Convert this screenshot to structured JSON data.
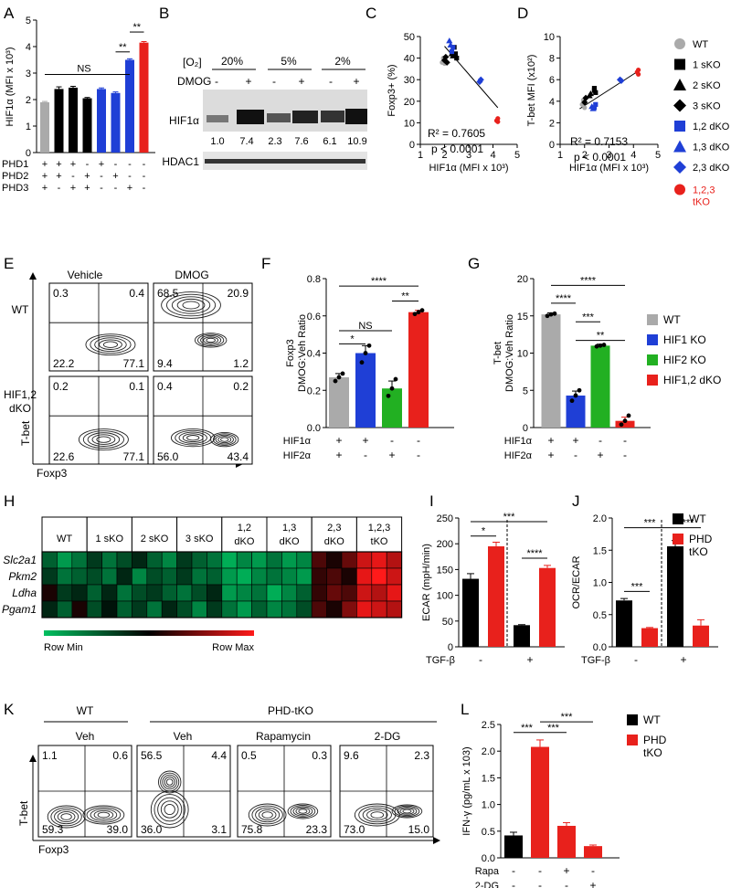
{
  "panel_letters": [
    "A",
    "B",
    "C",
    "D",
    "E",
    "F",
    "G",
    "H",
    "I",
    "J",
    "K",
    "L"
  ],
  "legend_phd": {
    "items": [
      {
        "label": "WT",
        "color": "#aaaaaa",
        "shape": "circle"
      },
      {
        "label": "1 sKO",
        "color": "#000000",
        "shape": "square"
      },
      {
        "label": "2 sKO",
        "color": "#000000",
        "shape": "triangle"
      },
      {
        "label": "3 sKO",
        "color": "#000000",
        "shape": "diamond"
      },
      {
        "label": "1,2 dKO",
        "color": "#1f3fd6",
        "shape": "square"
      },
      {
        "label": "1,3 dKO",
        "color": "#1f3fd6",
        "shape": "triangle"
      },
      {
        "label": "2,3 dKO",
        "color": "#1f3fd6",
        "shape": "diamond"
      },
      {
        "label": "1,2,3",
        "label2": "tKO",
        "color": "#e8211c",
        "shape": "circle"
      }
    ]
  },
  "legend_hif": {
    "items": [
      {
        "label": "WT",
        "color": "#aaaaaa"
      },
      {
        "label": "HIF1 KO",
        "color": "#1f3fd6"
      },
      {
        "label": "HIF2 KO",
        "color": "#22b022"
      },
      {
        "label": "HIF1,2 dKO",
        "color": "#e8211c"
      }
    ]
  },
  "legend_ij": {
    "items": [
      {
        "label": "WT",
        "color": "#000000"
      },
      {
        "label": "PHD",
        "label2": "tKO",
        "color": "#e8211c"
      }
    ]
  },
  "panelB": {
    "o2_label": "[O₂]",
    "dmog_label": "DMOG",
    "conditions": [
      "20%",
      "5%",
      "2%"
    ],
    "lane_signs": [
      "-",
      "+",
      "-",
      "+",
      "-",
      "+"
    ],
    "quant": [
      "1.0",
      "7.4",
      "2.3",
      "7.6",
      "6.1",
      "10.9"
    ],
    "band1": "HIF1α",
    "band2": "HDAC1"
  },
  "panelE": {
    "col_titles": [
      "Vehicle",
      "DMOG"
    ],
    "row_labels": [
      "WT",
      "HIF1,2",
      "dKO"
    ],
    "ylabel": "T-bet",
    "xlabel": "Foxp3",
    "quadrants": [
      [
        "0.3",
        "0.4",
        "22.2",
        "77.1"
      ],
      [
        "68.5",
        "20.9",
        "9.4",
        "1.2"
      ],
      [
        "0.2",
        "0.1",
        "22.6",
        "77.1"
      ],
      [
        "0.4",
        "0.2",
        "56.0",
        "43.4"
      ]
    ]
  },
  "panelH": {
    "groups": [
      "WT",
      "1 sKO",
      "2 sKO",
      "3 sKO",
      "1,2",
      "dKO",
      "1,3",
      "dKO",
      "2,3",
      "dKO",
      "1,2,3",
      "tKO"
    ],
    "genes": [
      "Slc2a1",
      "Pkm2",
      "Ldha",
      "Pgam1"
    ],
    "row_min": "Row Min",
    "row_max": "Row Max"
  },
  "panelK": {
    "group_wt": "WT",
    "group_tko": "PHD-tKO",
    "col_titles": [
      "Veh",
      "Veh",
      "Rapamycin",
      "2-DG"
    ],
    "ylabel": "T-bet",
    "xlabel": "Foxp3",
    "quadrants": [
      [
        "1.1",
        "0.6",
        "59.3",
        "39.0"
      ],
      [
        "56.5",
        "4.4",
        "36.0",
        "3.1"
      ],
      [
        "0.5",
        "0.3",
        "75.8",
        "23.3"
      ],
      [
        "9.6",
        "2.3",
        "73.0",
        "15.0"
      ]
    ]
  },
  "chart_data": [
    {
      "panel": "A",
      "type": "bar",
      "ylabel": "HIF1α (MFI x 10³)",
      "ylim": [
        0,
        5
      ],
      "yticks": [
        0,
        1,
        2,
        3,
        4,
        5
      ],
      "values": [
        1.9,
        2.4,
        2.45,
        2.05,
        2.4,
        2.25,
        3.5,
        4.15
      ],
      "errors": [
        0.03,
        0.08,
        0.05,
        0.03,
        0.04,
        0.04,
        0.04,
        0.04
      ],
      "colors": [
        "#aaaaaa",
        "#000000",
        "#000000",
        "#000000",
        "#1f3fd6",
        "#1f3fd6",
        "#1f3fd6",
        "#e8211c"
      ],
      "row_labels": [
        "PHD1",
        "PHD2",
        "PHD3"
      ],
      "genotype_signs": [
        [
          "+",
          "+",
          "+",
          "-",
          "+",
          "-",
          "-",
          "-"
        ],
        [
          "+",
          "+",
          "-",
          "+",
          "-",
          "+",
          "-",
          "-"
        ],
        [
          "+",
          "-",
          "+",
          "+",
          "-",
          "-",
          "+",
          "-"
        ]
      ],
      "annotations": [
        "NS",
        "**",
        "**"
      ]
    },
    {
      "panel": "C",
      "type": "scatter",
      "xlabel": "HIF1α (MFI x 10³)",
      "ylabel": "Foxp3+ (%)",
      "xlim": [
        1,
        5
      ],
      "ylim": [
        0,
        50
      ],
      "xticks": [
        1,
        2,
        3,
        4,
        5
      ],
      "yticks": [
        0,
        10,
        20,
        30,
        40,
        50
      ],
      "stats": [
        "R² = 0.7605",
        "p < 0.0001"
      ],
      "fit": [
        [
          2.0,
          45.5
        ],
        [
          4.2,
          17.0
        ]
      ],
      "points": [
        {
          "x": 1.9,
          "y": 38,
          "g": "WT"
        },
        {
          "x": 1.95,
          "y": 40,
          "g": "WT"
        },
        {
          "x": 2.0,
          "y": 37.5,
          "g": "WT"
        },
        {
          "x": 2.4,
          "y": 45,
          "g": "1 sKO"
        },
        {
          "x": 2.45,
          "y": 42,
          "g": "1 sKO"
        },
        {
          "x": 2.5,
          "y": 40,
          "g": "1 sKO"
        },
        {
          "x": 2.3,
          "y": 42,
          "g": "2 sKO"
        },
        {
          "x": 2.35,
          "y": 41,
          "g": "2 sKO"
        },
        {
          "x": 2.0,
          "y": 39,
          "g": "3 sKO"
        },
        {
          "x": 2.05,
          "y": 40.5,
          "g": "3 sKO"
        },
        {
          "x": 2.1,
          "y": 38,
          "g": "3 sKO"
        },
        {
          "x": 2.3,
          "y": 43,
          "g": "1,2 dKO"
        },
        {
          "x": 2.35,
          "y": 45,
          "g": "1,2 dKO"
        },
        {
          "x": 2.2,
          "y": 48,
          "g": "1,3 dKO"
        },
        {
          "x": 2.25,
          "y": 46,
          "g": "1,3 dKO"
        },
        {
          "x": 3.45,
          "y": 29,
          "g": "2,3 dKO"
        },
        {
          "x": 3.5,
          "y": 30,
          "g": "2,3 dKO"
        },
        {
          "x": 4.15,
          "y": 11,
          "g": "1,2,3 tKO"
        },
        {
          "x": 4.2,
          "y": 12,
          "g": "1,2,3 tKO"
        },
        {
          "x": 4.2,
          "y": 10.5,
          "g": "1,2,3 tKO"
        }
      ]
    },
    {
      "panel": "D",
      "type": "scatter",
      "xlabel": "HIF1α (MFI x 10³)",
      "ylabel": "T-bet MFI (x10²)",
      "xlim": [
        1,
        5
      ],
      "ylim": [
        0,
        10
      ],
      "xticks": [
        1,
        2,
        3,
        4,
        5
      ],
      "yticks": [
        0,
        2,
        4,
        6,
        8,
        10
      ],
      "stats": [
        "R² = 0.7153",
        "p < 0.0001"
      ],
      "fit": [
        [
          1.8,
          3.3
        ],
        [
          4.2,
          6.8
        ]
      ],
      "points": [
        {
          "x": 1.9,
          "y": 3.7,
          "g": "WT"
        },
        {
          "x": 1.95,
          "y": 4.1,
          "g": "WT"
        },
        {
          "x": 2.0,
          "y": 3.4,
          "g": "WT"
        },
        {
          "x": 2.4,
          "y": 5.2,
          "g": "1 sKO"
        },
        {
          "x": 2.45,
          "y": 4.8,
          "g": "1 sKO"
        },
        {
          "x": 2.4,
          "y": 5.0,
          "g": "1 sKO"
        },
        {
          "x": 2.2,
          "y": 4.5,
          "g": "2 sKO"
        },
        {
          "x": 2.25,
          "y": 4.7,
          "g": "2 sKO"
        },
        {
          "x": 2.0,
          "y": 3.9,
          "g": "3 sKO"
        },
        {
          "x": 2.05,
          "y": 4.3,
          "g": "3 sKO"
        },
        {
          "x": 2.4,
          "y": 3.4,
          "g": "1,2 dKO"
        },
        {
          "x": 2.45,
          "y": 3.7,
          "g": "1,2 dKO"
        },
        {
          "x": 2.3,
          "y": 3.5,
          "g": "1,3 dKO"
        },
        {
          "x": 2.35,
          "y": 3.3,
          "g": "1,3 dKO"
        },
        {
          "x": 3.45,
          "y": 6.0,
          "g": "2,3 dKO"
        },
        {
          "x": 3.5,
          "y": 5.9,
          "g": "2,3 dKO"
        },
        {
          "x": 4.15,
          "y": 6.7,
          "g": "1,2,3 tKO"
        },
        {
          "x": 4.2,
          "y": 6.5,
          "g": "1,2,3 tKO"
        },
        {
          "x": 4.2,
          "y": 6.9,
          "g": "1,2,3 tKO"
        }
      ]
    },
    {
      "panel": "F",
      "type": "bar",
      "ylabel": "Foxp3",
      "ylabel2": "DMOG:Veh Ratio",
      "ylim": [
        0,
        0.8
      ],
      "yticks": [
        "0.0",
        "0.2",
        "0.4",
        "0.6",
        "0.8"
      ],
      "values": [
        0.27,
        0.4,
        0.21,
        0.62
      ],
      "errors": [
        0.02,
        0.04,
        0.04,
        0.01
      ],
      "colors": [
        "#aaaaaa",
        "#1f3fd6",
        "#22b022",
        "#e8211c"
      ],
      "points": [
        [
          0.25,
          0.27,
          0.29
        ],
        [
          0.35,
          0.4,
          0.44
        ],
        [
          0.17,
          0.21,
          0.26
        ],
        [
          0.61,
          0.62,
          0.63
        ]
      ],
      "row_labels": [
        "HIF1α",
        "HIF2α"
      ],
      "genotype_signs": [
        [
          "+",
          "+",
          "-",
          "-"
        ],
        [
          "+",
          "-",
          "+",
          "-"
        ]
      ],
      "annotations": [
        "*",
        "NS",
        "**",
        "****"
      ]
    },
    {
      "panel": "G",
      "type": "bar",
      "ylabel": "T-bet",
      "ylabel2": "DMOG:Veh Ratio",
      "ylim": [
        0,
        20
      ],
      "yticks": [
        "0",
        "5",
        "10",
        "15",
        "20"
      ],
      "values": [
        15.2,
        4.3,
        11.0,
        0.9
      ],
      "errors": [
        0.2,
        0.6,
        0.2,
        0.5
      ],
      "colors": [
        "#aaaaaa",
        "#1f3fd6",
        "#22b022",
        "#e8211c"
      ],
      "points": [
        [
          15.0,
          15.2,
          15.3
        ],
        [
          3.6,
          4.3,
          5.0
        ],
        [
          10.9,
          11.0,
          11.1
        ],
        [
          0.4,
          0.9,
          1.6
        ]
      ],
      "row_labels": [
        "HIF1α",
        "HIF2α"
      ],
      "genotype_signs": [
        [
          "+",
          "+",
          "-",
          "-"
        ],
        [
          "+",
          "-",
          "+",
          "-"
        ]
      ],
      "annotations": [
        "****",
        "***",
        "**",
        "****"
      ]
    },
    {
      "panel": "H",
      "type": "heatmap",
      "rows": [
        "Slc2a1",
        "Pkm2",
        "Ldha",
        "Pgam1"
      ],
      "columns": [
        "WT",
        "WT",
        "WT",
        "1 sKO",
        "1 sKO",
        "1 sKO",
        "2 sKO",
        "2 sKO",
        "2 sKO",
        "3 sKO",
        "3 sKO",
        "3 sKO",
        "1,2 dKO",
        "1,2 dKO",
        "1,2 dKO",
        "1,3 dKO",
        "1,3 dKO",
        "1,3 dKO",
        "2,3 dKO",
        "2,3 dKO",
        "2,3 dKO",
        "1,2,3 tKO",
        "1,2,3 tKO",
        "1,2,3 tKO"
      ],
      "values": [
        [
          -0.5,
          -0.8,
          -0.6,
          -0.3,
          -0.6,
          -0.4,
          -0.2,
          -0.5,
          -0.7,
          -0.3,
          -0.5,
          -0.6,
          -0.9,
          -0.7,
          -0.8,
          -0.6,
          -0.8,
          -0.7,
          0.3,
          0.1,
          0.4,
          0.8,
          0.9,
          0.7
        ],
        [
          -0.3,
          -0.6,
          -0.5,
          -0.4,
          -0.6,
          -0.2,
          -0.7,
          -0.4,
          -0.5,
          -0.3,
          -0.6,
          -0.5,
          -0.8,
          -0.9,
          -0.7,
          -0.6,
          -0.7,
          -0.8,
          0.2,
          0.3,
          0.1,
          0.9,
          1.0,
          0.8
        ],
        [
          0.1,
          -0.3,
          -0.2,
          -0.5,
          -0.2,
          -0.6,
          -0.4,
          -0.3,
          -0.5,
          -0.6,
          -0.4,
          -0.2,
          -0.8,
          -0.7,
          -0.6,
          -0.9,
          -0.7,
          -0.5,
          0.2,
          0.4,
          0.3,
          0.8,
          0.7,
          0.9
        ],
        [
          -0.2,
          -0.5,
          0.1,
          -0.4,
          -0.1,
          -0.5,
          -0.3,
          -0.6,
          -0.2,
          -0.4,
          -0.7,
          -0.3,
          -0.6,
          -0.8,
          -0.5,
          -0.7,
          -0.6,
          -0.4,
          0.3,
          0.1,
          0.5,
          0.9,
          0.8,
          0.7
        ]
      ]
    },
    {
      "panel": "I",
      "type": "bar",
      "ylabel": "ECAR (mpH/min)",
      "ylim": [
        0,
        250
      ],
      "yticks": [
        0,
        50,
        100,
        150,
        200,
        250
      ],
      "values": [
        132,
        195,
        42,
        153
      ],
      "errors": [
        10,
        8,
        1,
        5
      ],
      "colors": [
        "#000000",
        "#e8211c",
        "#000000",
        "#e8211c"
      ],
      "row_labels": [
        "TGF-β"
      ],
      "genotype_signs": [
        [
          "-",
          "+"
        ]
      ],
      "annotations": [
        "*",
        "***",
        "****"
      ]
    },
    {
      "panel": "J",
      "type": "bar",
      "ylabel": "OCR/ECAR",
      "ylim": [
        0,
        2.0
      ],
      "yticks": [
        "0.0",
        "0.5",
        "1.0",
        "1.5",
        "2.0"
      ],
      "values": [
        0.72,
        0.29,
        1.56,
        0.33
      ],
      "errors": [
        0.03,
        0.01,
        0.09,
        0.09
      ],
      "colors": [
        "#000000",
        "#e8211c",
        "#000000",
        "#e8211c"
      ],
      "row_labels": [
        "TGF-β"
      ],
      "genotype_signs": [
        [
          "-",
          "+"
        ]
      ],
      "annotations": [
        "***",
        "***",
        "***"
      ]
    },
    {
      "panel": "L",
      "type": "bar",
      "ylabel": "IFN-γ (pg/mL x 103)",
      "ylim": [
        0,
        2.5
      ],
      "yticks": [
        "0.0",
        "0.5",
        "1.0",
        "1.5",
        "2.0",
        "2.5"
      ],
      "values": [
        0.42,
        2.08,
        0.6,
        0.22
      ],
      "errors": [
        0.06,
        0.13,
        0.06,
        0.02
      ],
      "colors": [
        "#000000",
        "#e8211c",
        "#e8211c",
        "#e8211c"
      ],
      "row_labels": [
        "Rapa",
        "2-DG"
      ],
      "genotype_signs": [
        [
          "-",
          "-",
          "+",
          "-"
        ],
        [
          "-",
          "-",
          "-",
          "+"
        ]
      ],
      "annotations": [
        "***",
        "***",
        "***"
      ]
    }
  ]
}
